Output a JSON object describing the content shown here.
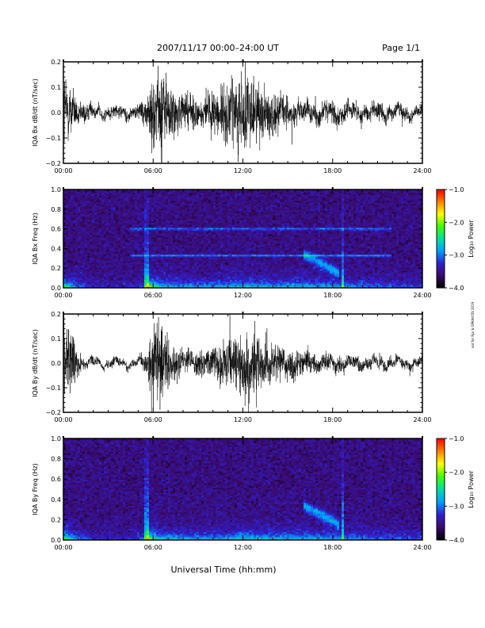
{
  "header": {
    "title": "2007/11/17  00:00–24:00 UT",
    "page": "Page 1/1"
  },
  "footer": {
    "xlabel": "Universal Time (hh:mm)",
    "side_note": "not for Rpr & SPAIHI DS 2019"
  },
  "colorbar": {
    "label": "Log₁₀ Power",
    "ticks": [
      "−1.0",
      "−2.0",
      "−3.0",
      "−4.0"
    ],
    "tick_values": [
      -1.0,
      -2.0,
      -3.0,
      -4.0
    ],
    "range": [
      -4.0,
      -1.0
    ],
    "colors": [
      "#000000",
      "#3a0a6a",
      "#3020d0",
      "#00a0ff",
      "#00e0a0",
      "#40ff00",
      "#ffff00",
      "#ff8000",
      "#ff0000"
    ]
  },
  "chart_data": [
    {
      "type": "line",
      "ylabel": "IQA Bx dB/dt (nT/sec)",
      "xlim": [
        0,
        24
      ],
      "ylim": [
        -0.2,
        0.2
      ],
      "x_ticks": [
        "00:00",
        "06:00",
        "12:00",
        "18:00",
        "24:00"
      ],
      "x_tick_values": [
        0,
        6,
        12,
        18,
        24
      ],
      "y_ticks": [
        "0.2",
        "0.1",
        "0.0",
        "−0.1",
        "−0.2"
      ],
      "y_tick_values": [
        0.2,
        0.1,
        0.0,
        -0.1,
        -0.2
      ],
      "series": [
        {
          "x": [
            0,
            0.5,
            1,
            1.5,
            2,
            2.5,
            3,
            3.5,
            4,
            4.5,
            5,
            5.5,
            6,
            6.5,
            7,
            7.5,
            8,
            8.5,
            9,
            9.5,
            10,
            10.5,
            11,
            11.5,
            12,
            12.5,
            13,
            13.5,
            14,
            14.5,
            15,
            15.5,
            16,
            16.5,
            17,
            17.5,
            18,
            18.5,
            19,
            19.5,
            20,
            20.5,
            21,
            21.5,
            22,
            22.5,
            23,
            23.5,
            24
          ],
          "amplitude": [
            0.2,
            0.12,
            0.05,
            0.04,
            0.03,
            0.03,
            0.03,
            0.03,
            0.03,
            0.03,
            0.03,
            0.06,
            0.2,
            0.2,
            0.16,
            0.1,
            0.08,
            0.08,
            0.07,
            0.07,
            0.1,
            0.12,
            0.14,
            0.16,
            0.2,
            0.15,
            0.14,
            0.12,
            0.1,
            0.08,
            0.07,
            0.06,
            0.05,
            0.05,
            0.05,
            0.05,
            0.05,
            0.05,
            0.04,
            0.04,
            0.04,
            0.04,
            0.04,
            0.04,
            0.03,
            0.03,
            0.03,
            0.03,
            0.03
          ]
        }
      ]
    },
    {
      "type": "heatmap",
      "ylabel": "IQA Bx Freq (Hz)",
      "xlim": [
        0,
        24
      ],
      "ylim": [
        0.0,
        1.0
      ],
      "x_ticks": [
        "00:00",
        "06:00",
        "12:00",
        "18:00",
        "24:00"
      ],
      "x_tick_values": [
        0,
        6,
        12,
        18,
        24
      ],
      "y_ticks": [
        "1.0",
        "0.8",
        "0.6",
        "0.4",
        "0.2",
        "0.0"
      ],
      "y_tick_values": [
        1.0,
        0.8,
        0.6,
        0.4,
        0.2,
        0.0
      ],
      "zlim": [
        -4.0,
        -1.0
      ],
      "features": {
        "bands_hz": [
          0.6,
          0.33
        ],
        "vertical_lines_hour": [
          5.6,
          18.7
        ],
        "hiss_blob": {
          "time": [
            16.0,
            18.5
          ],
          "freq": [
            0.15,
            0.35
          ]
        }
      }
    },
    {
      "type": "line",
      "ylabel": "IQA By dB/dt (nT/sec)",
      "xlim": [
        0,
        24
      ],
      "ylim": [
        -0.2,
        0.2
      ],
      "x_ticks": [
        "00:00",
        "06:00",
        "12:00",
        "18:00",
        "24:00"
      ],
      "x_tick_values": [
        0,
        6,
        12,
        18,
        24
      ],
      "y_ticks": [
        "0.2",
        "0.1",
        "0.0",
        "−0.1",
        "−0.2"
      ],
      "y_tick_values": [
        0.2,
        0.1,
        0.0,
        -0.1,
        -0.2
      ],
      "series": [
        {
          "x": [
            0,
            0.5,
            1,
            1.5,
            2,
            2.5,
            3,
            3.5,
            4,
            4.5,
            5,
            5.5,
            6,
            6.5,
            7,
            7.5,
            8,
            8.5,
            9,
            9.5,
            10,
            10.5,
            11,
            11.5,
            12,
            12.5,
            13,
            13.5,
            14,
            14.5,
            15,
            15.5,
            16,
            16.5,
            17,
            17.5,
            18,
            18.5,
            19,
            19.5,
            20,
            20.5,
            21,
            21.5,
            22,
            22.5,
            23,
            23.5,
            24
          ],
          "amplitude": [
            0.2,
            0.15,
            0.04,
            0.02,
            0.02,
            0.02,
            0.02,
            0.02,
            0.02,
            0.02,
            0.02,
            0.05,
            0.2,
            0.2,
            0.12,
            0.08,
            0.06,
            0.06,
            0.06,
            0.06,
            0.08,
            0.1,
            0.12,
            0.14,
            0.18,
            0.16,
            0.12,
            0.11,
            0.1,
            0.08,
            0.07,
            0.06,
            0.05,
            0.05,
            0.04,
            0.04,
            0.04,
            0.04,
            0.03,
            0.03,
            0.03,
            0.03,
            0.03,
            0.03,
            0.02,
            0.02,
            0.02,
            0.02,
            0.02
          ]
        }
      ]
    },
    {
      "type": "heatmap",
      "ylabel": "IQA By Freq (Hz)",
      "xlim": [
        0,
        24
      ],
      "ylim": [
        0.0,
        1.0
      ],
      "x_ticks": [
        "00:00",
        "06:00",
        "12:00",
        "18:00",
        "24:00"
      ],
      "x_tick_values": [
        0,
        6,
        12,
        18,
        24
      ],
      "y_ticks": [
        "1.0",
        "0.8",
        "0.6",
        "0.4",
        "0.2",
        "0.0"
      ],
      "y_tick_values": [
        1.0,
        0.8,
        0.6,
        0.4,
        0.2,
        0.0
      ],
      "zlim": [
        -4.0,
        -1.0
      ],
      "features": {
        "bands_hz": [],
        "vertical_lines_hour": [
          5.6,
          18.7
        ],
        "hiss_blob": {
          "time": [
            16.0,
            18.5
          ],
          "freq": [
            0.15,
            0.35
          ]
        }
      }
    }
  ]
}
